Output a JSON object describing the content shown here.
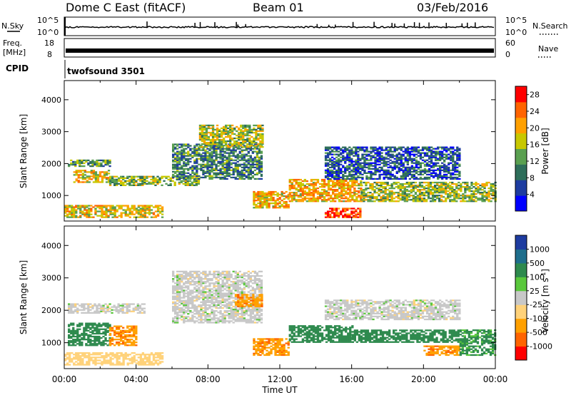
{
  "header": {
    "station": "Dome C East (fitACF)",
    "beam": "Beam 01",
    "date": "03/Feb/2016"
  },
  "top_panels": {
    "nsky_label": "N.Sky",
    "nsky_ticks": [
      "10^5",
      "10^0"
    ],
    "nsearch_label": "N.Search",
    "nsearch_ticks": [
      "10^5",
      "10^0"
    ],
    "freq_label_1": "Freq.",
    "freq_label_2": "[MHz]",
    "freq_ticks": [
      "18",
      "8"
    ],
    "nave_label": "Nave",
    "nave_ticks": [
      "60",
      "0"
    ],
    "cpid_label": "CPID",
    "cpid_value": "twofsound 3501"
  },
  "colors": {
    "power_scale": [
      "#0000ff",
      "#1e3ca0",
      "#2e6e5a",
      "#5aa050",
      "#c8c800",
      "#ffa000",
      "#ff6400",
      "#ff0000"
    ],
    "velocity_scale": [
      "#ff0000",
      "#ff6400",
      "#ffa000",
      "#ffd27a",
      "#c8c8c8",
      "#5ac83c",
      "#2e8a4e",
      "#1e6e8c",
      "#1e3ca0"
    ]
  },
  "chart_data": [
    {
      "type": "heatmap",
      "name": "power",
      "xlabel": "Time UT",
      "ylabel": "Slant Range [km]",
      "x_ticks": [
        "00:00",
        "04:00",
        "08:00",
        "12:00",
        "16:00",
        "20:00",
        "00:00"
      ],
      "xlim_hours": [
        0,
        24
      ],
      "y_ticks": [
        "1000",
        "2000",
        "3000",
        "4000"
      ],
      "y_tick_values": [
        1000,
        2000,
        3000,
        4000
      ],
      "ylim": [
        200,
        4600
      ],
      "colorbar_label": "Power [dB]",
      "colorbar_ticks": [
        "4",
        "8",
        "12",
        "16",
        "20",
        "24",
        "28"
      ],
      "colorbar_range": [
        0,
        30
      ],
      "regions": [
        {
          "t0": 0.0,
          "t1": 5.5,
          "r0": 300,
          "r1": 700,
          "level": 18
        },
        {
          "t0": 0.5,
          "t1": 2.5,
          "r0": 1400,
          "r1": 1800,
          "level": 18
        },
        {
          "t0": 0.2,
          "t1": 2.5,
          "r0": 1900,
          "r1": 2100,
          "level": 12
        },
        {
          "t0": 2.5,
          "t1": 7.5,
          "r0": 1300,
          "r1": 1600,
          "level": 14
        },
        {
          "t0": 6.0,
          "t1": 11.0,
          "r0": 1500,
          "r1": 2600,
          "level": 10
        },
        {
          "t0": 7.5,
          "t1": 11.0,
          "r0": 2500,
          "r1": 3200,
          "level": 16
        },
        {
          "t0": 10.5,
          "t1": 12.5,
          "r0": 600,
          "r1": 1100,
          "level": 20
        },
        {
          "t0": 12.5,
          "t1": 16.5,
          "r0": 800,
          "r1": 1500,
          "level": 20
        },
        {
          "t0": 16.5,
          "t1": 24.0,
          "r0": 800,
          "r1": 1400,
          "level": 15
        },
        {
          "t0": 14.5,
          "t1": 22.0,
          "r0": 1500,
          "r1": 2500,
          "level": 7
        },
        {
          "t0": 14.5,
          "t1": 16.5,
          "r0": 300,
          "r1": 600,
          "level": 26
        }
      ]
    },
    {
      "type": "heatmap",
      "name": "velocity",
      "xlabel": "Time UT",
      "ylabel": "Slant Range [km]",
      "x_ticks": [
        "00:00",
        "04:00",
        "08:00",
        "12:00",
        "16:00",
        "20:00",
        "00:00"
      ],
      "xlim_hours": [
        0,
        24
      ],
      "y_ticks": [
        "1000",
        "2000",
        "3000",
        "4000"
      ],
      "y_tick_values": [
        1000,
        2000,
        3000,
        4000
      ],
      "ylim": [
        200,
        4600
      ],
      "colorbar_label": "Velocity [m s^-1]",
      "colorbar_ticks": [
        "1000",
        "500",
        "100",
        "25",
        "-25",
        "-100",
        "-500",
        "-1000"
      ],
      "regions": [
        {
          "t0": 0.0,
          "t1": 5.5,
          "r0": 300,
          "r1": 700,
          "level": -60
        },
        {
          "t0": 0.2,
          "t1": 2.5,
          "r0": 900,
          "r1": 1600,
          "level": 300
        },
        {
          "t0": 0.2,
          "t1": 4.5,
          "r0": 1900,
          "r1": 2200,
          "level": 0
        },
        {
          "t0": 2.5,
          "t1": 4.0,
          "r0": 900,
          "r1": 1500,
          "level": -400
        },
        {
          "t0": 6.0,
          "t1": 11.0,
          "r0": 1600,
          "r1": 3200,
          "level": 0
        },
        {
          "t0": 9.5,
          "t1": 11.0,
          "r0": 2100,
          "r1": 2500,
          "level": -400
        },
        {
          "t0": 10.5,
          "t1": 12.5,
          "r0": 600,
          "r1": 1100,
          "level": -400
        },
        {
          "t0": 12.5,
          "t1": 16.0,
          "r0": 1000,
          "r1": 1500,
          "level": 300
        },
        {
          "t0": 16.0,
          "t1": 22.0,
          "r0": 1000,
          "r1": 1400,
          "level": 200
        },
        {
          "t0": 20.0,
          "t1": 22.0,
          "r0": 600,
          "r1": 900,
          "level": -400
        },
        {
          "t0": 22.0,
          "t1": 24.0,
          "r0": 600,
          "r1": 1400,
          "level": 150
        },
        {
          "t0": 14.5,
          "t1": 22.0,
          "r0": 1700,
          "r1": 2300,
          "level": 0
        }
      ]
    }
  ]
}
